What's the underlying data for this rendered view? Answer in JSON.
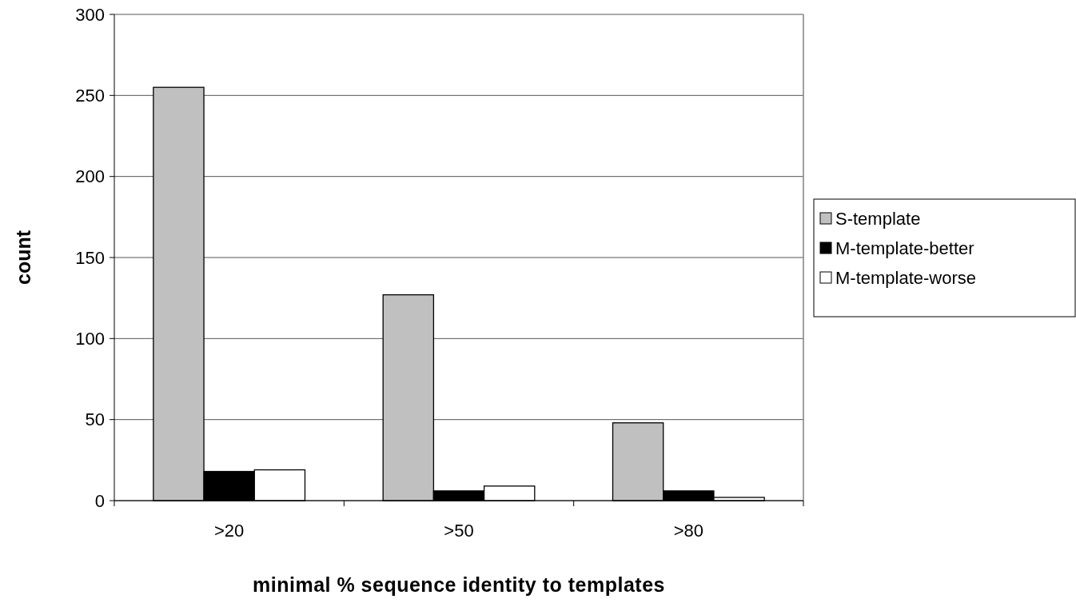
{
  "chart_data": {
    "type": "bar",
    "xlabel": "minimal % sequence identity to templates",
    "ylabel": "count",
    "categories": [
      ">20",
      ">50",
      ">80"
    ],
    "series": [
      {
        "name": "S-template",
        "color": "#c0c0c0",
        "values": [
          255,
          127,
          48
        ]
      },
      {
        "name": "M-template-better",
        "color": "#000000",
        "values": [
          18,
          6,
          6
        ]
      },
      {
        "name": "M-template-worse",
        "color": "#ffffff",
        "values": [
          19,
          9,
          2
        ]
      }
    ],
    "ylim": [
      0,
      300
    ],
    "yticks": [
      0,
      50,
      100,
      150,
      200,
      250,
      300
    ],
    "grid": "y",
    "legend": "right"
  }
}
